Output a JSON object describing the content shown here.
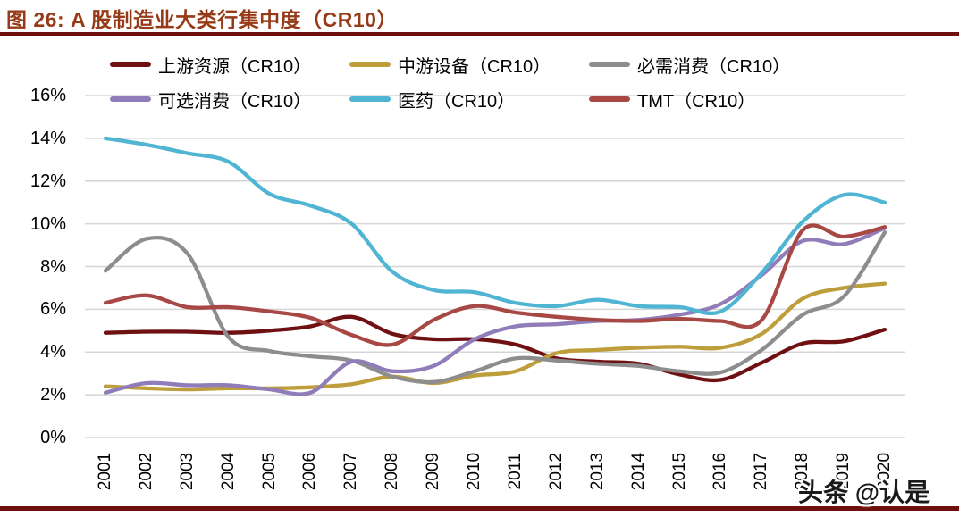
{
  "page": {
    "title": "图 26:  A 股制造业大类行集中度（CR10）",
    "watermark": "头条 @认是"
  },
  "colors": {
    "title": "#963A17",
    "rule": "#6E0F0D",
    "grid": "#D6D6D6",
    "axis_text": "#000000",
    "background": "#FFFFFF"
  },
  "chart_data": {
    "type": "line",
    "title": "A 股制造业大类行集中度（CR10）",
    "categories": [
      "2001",
      "2002",
      "2003",
      "2004",
      "2005",
      "2006",
      "2007",
      "2008",
      "2009",
      "2010",
      "2011",
      "2012",
      "2013",
      "2014",
      "2015",
      "2016",
      "2017",
      "2018",
      "2019",
      "2020"
    ],
    "series": [
      {
        "name": "上游资源（CR10）",
        "color": "#6F1013",
        "values": [
          4.9,
          4.95,
          4.95,
          4.9,
          5.0,
          5.2,
          5.65,
          4.85,
          4.6,
          4.6,
          4.35,
          3.7,
          3.55,
          3.45,
          2.95,
          2.7,
          3.5,
          4.4,
          4.5,
          5.05
        ]
      },
      {
        "name": "中游设备（CR10）",
        "color": "#BD9E3B",
        "values": [
          2.4,
          2.3,
          2.25,
          2.3,
          2.3,
          2.35,
          2.5,
          2.85,
          2.55,
          2.9,
          3.1,
          3.95,
          4.1,
          4.2,
          4.25,
          4.2,
          4.85,
          6.5,
          7.0,
          7.2
        ]
      },
      {
        "name": "必需消费（CR10）",
        "color": "#8D8D8D",
        "values": [
          7.8,
          9.3,
          8.6,
          4.7,
          4.05,
          3.8,
          3.6,
          2.85,
          2.6,
          3.1,
          3.7,
          3.6,
          3.45,
          3.35,
          3.1,
          3.05,
          4.1,
          5.75,
          6.6,
          9.6
        ]
      },
      {
        "name": "可选消费（CR10）",
        "color": "#8F7CB8",
        "values": [
          2.1,
          2.55,
          2.45,
          2.45,
          2.25,
          2.1,
          3.55,
          3.1,
          3.35,
          4.6,
          5.2,
          5.3,
          5.45,
          5.5,
          5.75,
          6.25,
          7.6,
          9.2,
          9.05,
          9.8
        ]
      },
      {
        "name": "医药（CR10）",
        "color": "#4FB5D3",
        "values": [
          14.0,
          13.7,
          13.3,
          12.9,
          11.4,
          10.85,
          10.0,
          7.75,
          6.9,
          6.8,
          6.3,
          6.15,
          6.45,
          6.15,
          6.1,
          5.9,
          7.7,
          10.1,
          11.35,
          11.0
        ]
      },
      {
        "name": "TMT（CR10）",
        "color": "#A74845",
        "values": [
          6.3,
          6.65,
          6.1,
          6.1,
          5.9,
          5.6,
          4.8,
          4.35,
          5.5,
          6.15,
          5.85,
          5.65,
          5.5,
          5.45,
          5.55,
          5.45,
          5.5,
          9.7,
          9.4,
          9.85
        ]
      }
    ],
    "ylim": [
      0,
      16
    ],
    "yticks": [
      "0%",
      "2%",
      "4%",
      "6%",
      "8%",
      "10%",
      "12%",
      "14%",
      "16%"
    ],
    "grid": "horizontal",
    "legend_position": "top",
    "legend_rows": [
      [
        0,
        1,
        2
      ],
      [
        3,
        4,
        5
      ]
    ]
  }
}
